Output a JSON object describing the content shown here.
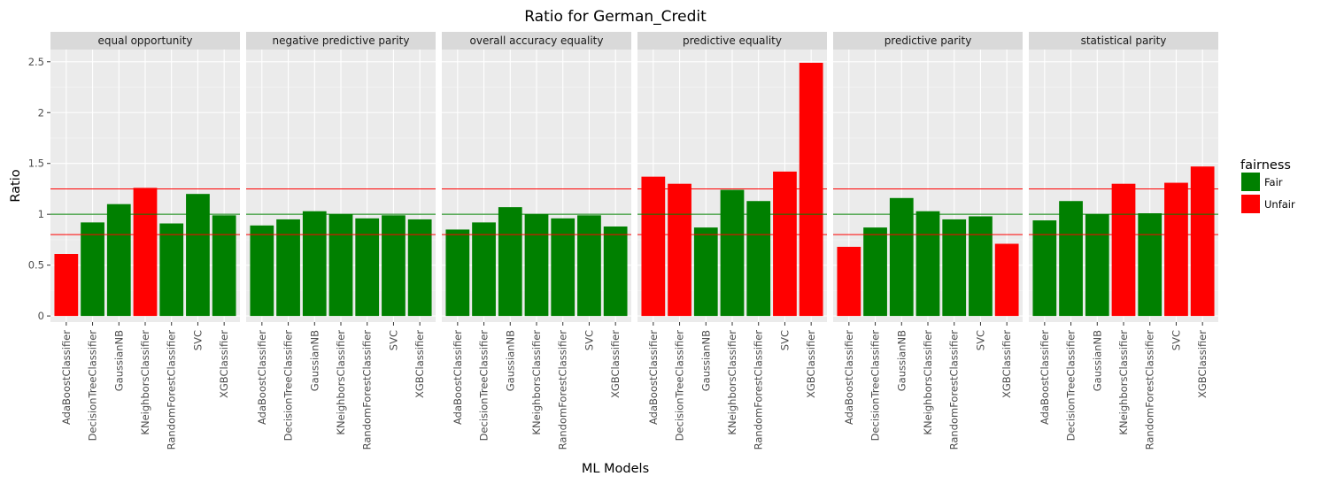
{
  "chart_data": {
    "type": "bar",
    "title": "Ratio for German_Credit",
    "xlabel": "ML Models",
    "ylabel": "Ratio",
    "ylim": [
      -0.06,
      2.62
    ],
    "yticks": [
      0,
      0.5,
      1,
      1.5,
      2,
      2.5
    ],
    "ytick_labels": [
      "0",
      "0.5",
      "1",
      "1.5",
      "2",
      "2.5"
    ],
    "categories": [
      "AdaBoostClassifier",
      "DecisionTreeClassifier",
      "GaussianNB",
      "KNeighborsClassifier",
      "RandomForestClassifier",
      "SVC",
      "XGBClassifier"
    ],
    "facets": [
      {
        "name": "equal opportunity",
        "values": [
          0.61,
          0.92,
          1.1,
          1.26,
          0.91,
          1.2,
          0.99
        ],
        "fairness": [
          "Unfair",
          "Fair",
          "Fair",
          "Unfair",
          "Fair",
          "Fair",
          "Fair"
        ]
      },
      {
        "name": "negative predictive parity",
        "values": [
          0.89,
          0.95,
          1.03,
          1.0,
          0.96,
          0.99,
          0.95
        ],
        "fairness": [
          "Fair",
          "Fair",
          "Fair",
          "Fair",
          "Fair",
          "Fair",
          "Fair"
        ]
      },
      {
        "name": "overall accuracy equality",
        "values": [
          0.85,
          0.92,
          1.07,
          1.0,
          0.96,
          0.99,
          0.88
        ],
        "fairness": [
          "Fair",
          "Fair",
          "Fair",
          "Fair",
          "Fair",
          "Fair",
          "Fair"
        ]
      },
      {
        "name": "predictive equality",
        "values": [
          1.37,
          1.3,
          0.87,
          1.24,
          1.13,
          1.42,
          2.49
        ],
        "fairness": [
          "Unfair",
          "Unfair",
          "Fair",
          "Fair",
          "Fair",
          "Unfair",
          "Unfair"
        ]
      },
      {
        "name": "predictive parity",
        "values": [
          0.68,
          0.87,
          1.16,
          1.03,
          0.95,
          0.98,
          0.71
        ],
        "fairness": [
          "Unfair",
          "Fair",
          "Fair",
          "Fair",
          "Fair",
          "Fair",
          "Unfair"
        ]
      },
      {
        "name": "statistical parity",
        "values": [
          0.94,
          1.13,
          1.0,
          1.3,
          1.01,
          1.31,
          1.47
        ],
        "fairness": [
          "Fair",
          "Fair",
          "Fair",
          "Unfair",
          "Fair",
          "Unfair",
          "Unfair"
        ]
      }
    ],
    "reference_lines": [
      {
        "value": 1.25,
        "color": "#ff0000"
      },
      {
        "value": 1.0,
        "color": "#008000"
      },
      {
        "value": 0.8,
        "color": "#ff0000"
      }
    ],
    "legend": {
      "title": "fairness",
      "position": "right",
      "items": [
        {
          "label": "Fair",
          "color": "#008000"
        },
        {
          "label": "Unfair",
          "color": "#ff0000"
        }
      ]
    },
    "grid": true
  }
}
